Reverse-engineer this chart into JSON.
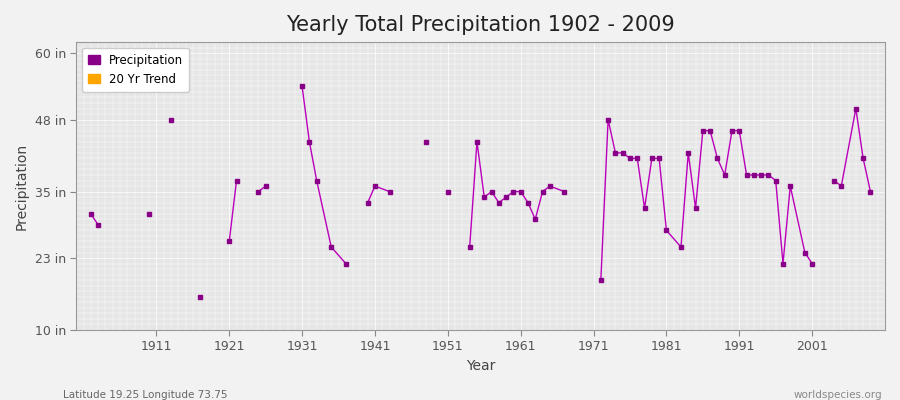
{
  "title": "Yearly Total Precipitation 1902 - 2009",
  "xlabel": "Year",
  "ylabel": "Precipitation",
  "precip_data": [
    [
      1902,
      31
    ],
    [
      1903,
      29
    ],
    [
      1910,
      31
    ],
    [
      1913,
      48
    ],
    [
      1917,
      16
    ],
    [
      1921,
      26
    ],
    [
      1922,
      37
    ],
    [
      1925,
      35
    ],
    [
      1926,
      36
    ],
    [
      1931,
      54
    ],
    [
      1932,
      44
    ],
    [
      1933,
      37
    ],
    [
      1935,
      25
    ],
    [
      1937,
      22
    ],
    [
      1940,
      33
    ],
    [
      1941,
      36
    ],
    [
      1943,
      35
    ],
    [
      1948,
      44
    ],
    [
      1951,
      35
    ],
    [
      1954,
      25
    ],
    [
      1955,
      44
    ],
    [
      1956,
      34
    ],
    [
      1957,
      35
    ],
    [
      1958,
      33
    ],
    [
      1959,
      34
    ],
    [
      1960,
      35
    ],
    [
      1961,
      35
    ],
    [
      1962,
      33
    ],
    [
      1963,
      30
    ],
    [
      1964,
      35
    ],
    [
      1965,
      36
    ],
    [
      1967,
      35
    ],
    [
      1972,
      19
    ],
    [
      1973,
      48
    ],
    [
      1974,
      42
    ],
    [
      1975,
      42
    ],
    [
      1976,
      41
    ],
    [
      1977,
      41
    ],
    [
      1978,
      32
    ],
    [
      1979,
      41
    ],
    [
      1980,
      41
    ],
    [
      1981,
      28
    ],
    [
      1983,
      25
    ],
    [
      1984,
      42
    ],
    [
      1985,
      32
    ],
    [
      1986,
      46
    ],
    [
      1987,
      46
    ],
    [
      1988,
      41
    ],
    [
      1989,
      38
    ],
    [
      1990,
      46
    ],
    [
      1991,
      46
    ],
    [
      1992,
      38
    ],
    [
      1993,
      38
    ],
    [
      1994,
      38
    ],
    [
      1995,
      38
    ],
    [
      1996,
      37
    ],
    [
      1997,
      22
    ],
    [
      1998,
      36
    ],
    [
      2000,
      24
    ],
    [
      2001,
      22
    ],
    [
      2004,
      37
    ],
    [
      2005,
      36
    ],
    [
      2007,
      50
    ],
    [
      2008,
      41
    ],
    [
      2009,
      35
    ]
  ],
  "line_color": "#bb00bb",
  "marker_color": "#880088",
  "trend_color": "#ffa500",
  "background_color": "#f2f2f2",
  "plot_bg_color": "#e6e6e6",
  "yticks": [
    10,
    23,
    35,
    48,
    60
  ],
  "ytick_labels": [
    "10 in",
    "23 in",
    "35 in",
    "48 in",
    "60 in"
  ],
  "ylim": [
    10,
    62
  ],
  "xlim": [
    1900,
    2011
  ],
  "xticks": [
    1911,
    1921,
    1931,
    1941,
    1951,
    1961,
    1971,
    1981,
    1991,
    2001
  ],
  "footer_left": "Latitude 19.25 Longitude 73.75",
  "footer_right": "worldspecies.org",
  "title_fontsize": 15,
  "axis_label_fontsize": 10,
  "tick_fontsize": 9
}
